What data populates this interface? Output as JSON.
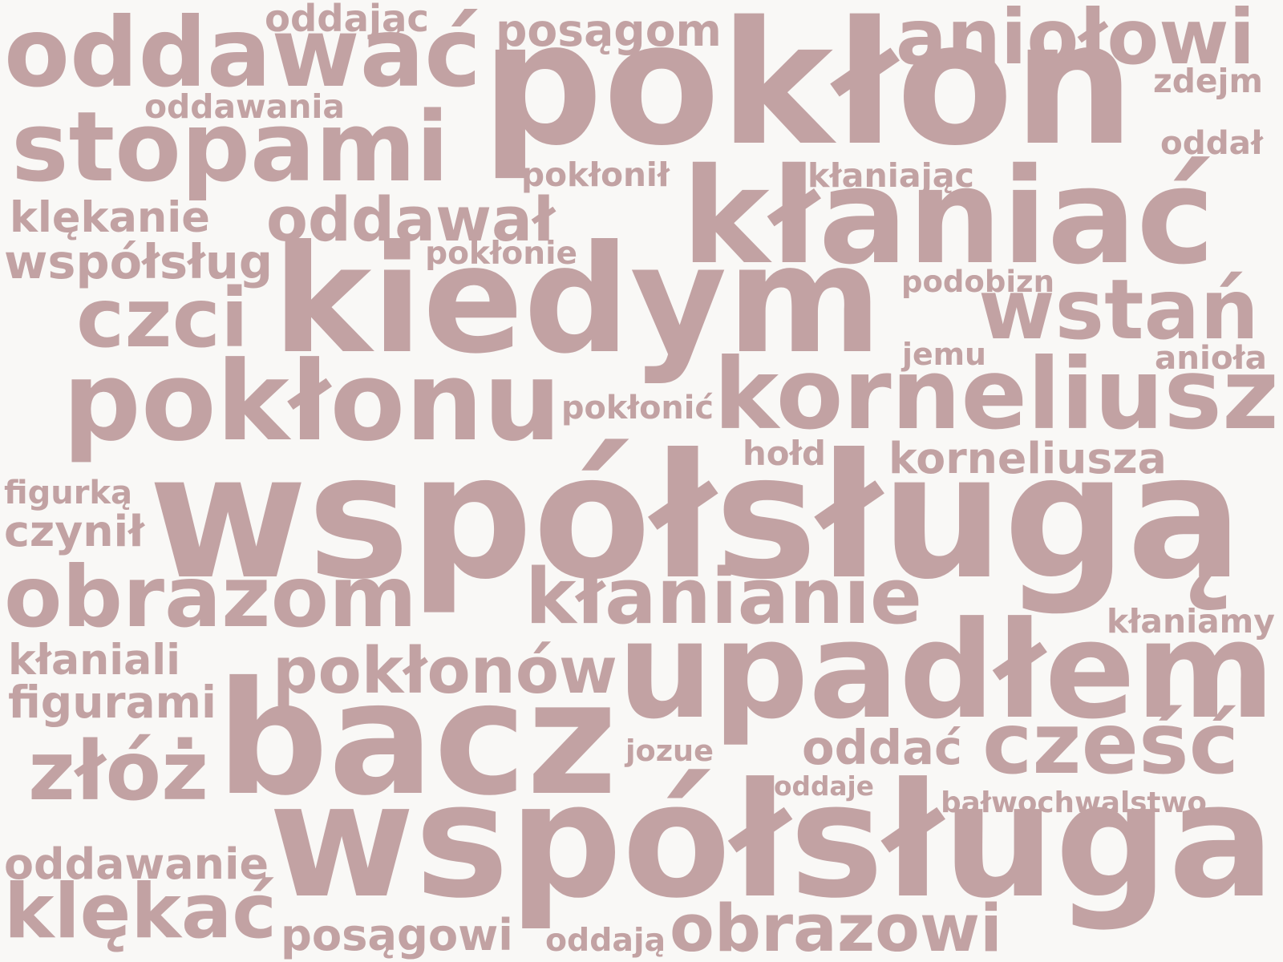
{
  "word_color": "#c2a2a3",
  "background": "#f9f8f6",
  "words": [
    {
      "text": "oddając"
    },
    {
      "text": "oddawać"
    },
    {
      "text": "posągom"
    },
    {
      "text": "aniołowi"
    },
    {
      "text": "pokłon"
    },
    {
      "text": "zdejm"
    },
    {
      "text": "oddawania"
    },
    {
      "text": "stopami"
    },
    {
      "text": "oddał"
    },
    {
      "text": "pokłonił"
    },
    {
      "text": "kłaniając"
    },
    {
      "text": "kłaniać"
    },
    {
      "text": "klękanie"
    },
    {
      "text": "oddawał"
    },
    {
      "text": "współsług"
    },
    {
      "text": "pokłonie"
    },
    {
      "text": "kiedym"
    },
    {
      "text": "podobizn"
    },
    {
      "text": "czci"
    },
    {
      "text": "wstań"
    },
    {
      "text": "jemu"
    },
    {
      "text": "anioła"
    },
    {
      "text": "pokłonu"
    },
    {
      "text": "pokłonić"
    },
    {
      "text": "korneliusz"
    },
    {
      "text": "hołd"
    },
    {
      "text": "korneliusza"
    },
    {
      "text": "figurką"
    },
    {
      "text": "współsługą"
    },
    {
      "text": "czynił"
    },
    {
      "text": "obrazom"
    },
    {
      "text": "kłanianie"
    },
    {
      "text": "kłaniamy"
    },
    {
      "text": "kłaniali"
    },
    {
      "text": "pokłonów"
    },
    {
      "text": "upadłem"
    },
    {
      "text": "figurami"
    },
    {
      "text": "bacz"
    },
    {
      "text": "jozue"
    },
    {
      "text": "oddać"
    },
    {
      "text": "cześć"
    },
    {
      "text": "złóż"
    },
    {
      "text": "oddaje"
    },
    {
      "text": "bałwochwalstwo"
    },
    {
      "text": "współsługa"
    },
    {
      "text": "oddawanie"
    },
    {
      "text": "klękać"
    },
    {
      "text": "posągowi"
    },
    {
      "text": "oddają"
    },
    {
      "text": "obrazowi"
    }
  ]
}
